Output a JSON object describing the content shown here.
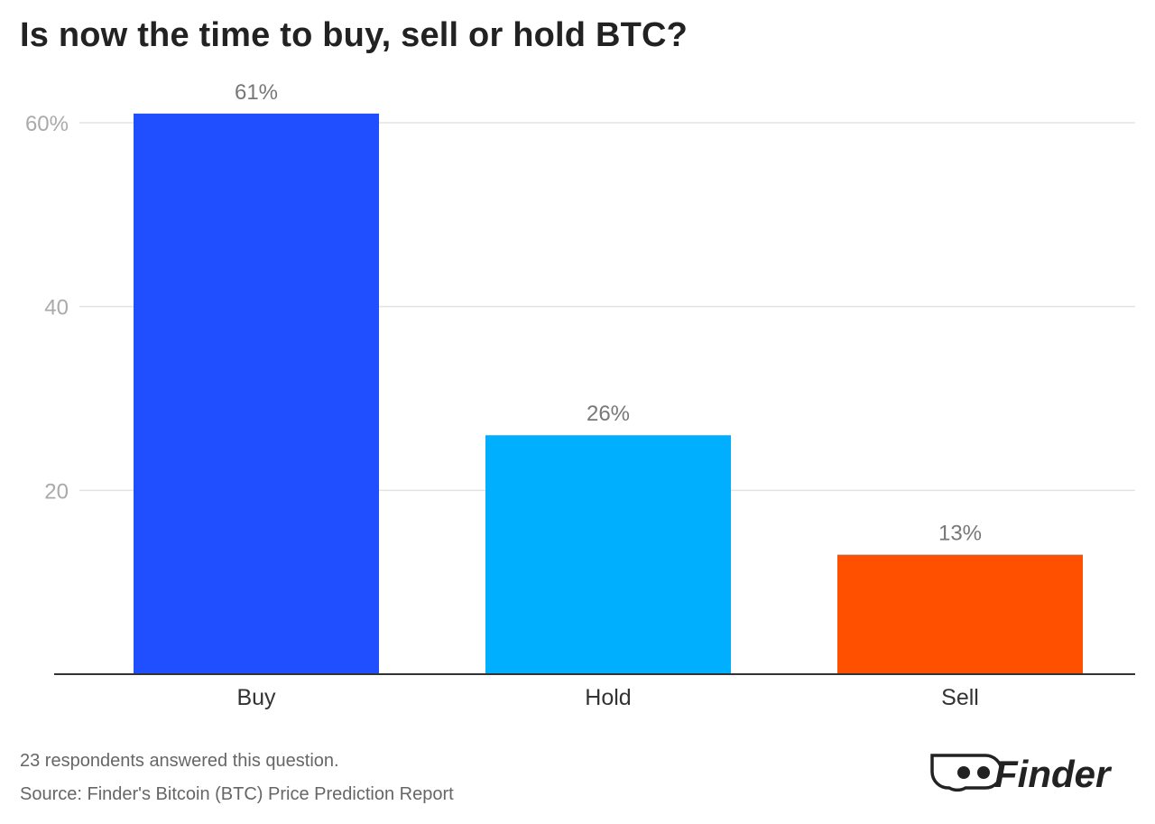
{
  "title": "Is now the time to buy, sell or hold BTC?",
  "chart_data": {
    "type": "bar",
    "title": "Is now the time to buy, sell or hold BTC?",
    "categories": [
      "Buy",
      "Hold",
      "Sell"
    ],
    "values": [
      61,
      26,
      13
    ],
    "data_labels": [
      "61%",
      "26%",
      "13%"
    ],
    "colors": [
      "#1f4fff",
      "#00b0ff",
      "#ff5000"
    ],
    "ylim": [
      0,
      60
    ],
    "yticks": [
      20,
      40,
      60
    ],
    "ytick_labels": [
      "20",
      "40",
      "60%"
    ],
    "grid": true,
    "xlabel": "",
    "ylabel": ""
  },
  "footer": {
    "note": "23 respondents answered this question.",
    "source": "Source: Finder's Bitcoin (BTC) Price Prediction Report",
    "logo_text": "Finder"
  }
}
